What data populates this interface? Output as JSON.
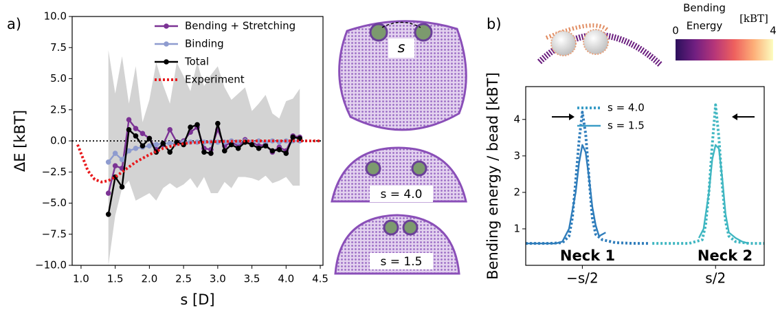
{
  "panel_labels": [
    "a)",
    "b)"
  ],
  "snapshot_labels": [
    "s",
    "s = 4.0",
    "s = 1.5"
  ],
  "colorbar": {
    "title": [
      "Bending",
      "Energy"
    ],
    "unit": "[kBT]",
    "ticks": [
      0,
      4
    ],
    "colors": [
      "#2c105c",
      "#711f81",
      "#b63679",
      "#ee605e",
      "#fdae78",
      "#fcfdbf"
    ]
  },
  "chart_data": [
    {
      "type": "line",
      "xlabel": "s [D]",
      "ylabel": "ΔE [kBT]",
      "xlim": [
        0.87,
        4.54
      ],
      "ylim": [
        -10,
        10
      ],
      "xticks": [
        {
          "value": 1,
          "label": "1.0"
        },
        1.5,
        {
          "value": 2,
          "label": "2.0"
        },
        2.5,
        {
          "value": 3,
          "label": "3.0"
        },
        3.5,
        {
          "value": 4,
          "label": "4.0"
        },
        4.5
      ],
      "yticks": [
        {
          "value": -10,
          "label": "−10.0"
        },
        {
          "value": -7.5,
          "label": "−7.5"
        },
        {
          "value": -5,
          "label": "−5.0"
        },
        {
          "value": -2.5,
          "label": "−2.5"
        },
        {
          "value": 0,
          "label": "0.0"
        },
        2.5,
        {
          "value": 5,
          "label": "5.0"
        },
        7.5,
        {
          "value": 10,
          "label": "10.0"
        }
      ],
      "hline": 0,
      "legend": "upper right",
      "x": [
        1.4,
        1.5,
        1.6,
        1.7,
        1.8,
        1.9,
        2.0,
        2.1,
        2.2,
        2.3,
        2.4,
        2.5,
        2.6,
        2.7,
        2.8,
        2.9,
        3.0,
        3.1,
        3.2,
        3.3,
        3.4,
        3.5,
        3.6,
        3.7,
        3.8,
        3.9,
        4.0,
        4.1,
        4.2
      ],
      "band": {
        "color": "#d3d3d3",
        "upper": [
          7.3,
          3.8,
          6.8,
          3.0,
          6.0,
          1.5,
          3.3,
          6.3,
          4.5,
          3.0,
          6.3,
          5.2,
          4.0,
          6.3,
          4.4,
          5.3,
          6.0,
          4.3,
          3.3,
          3.8,
          4.3,
          2.4,
          3.0,
          3.7,
          2.2,
          1.8,
          3.2,
          3.4,
          4.2
        ],
        "lower": [
          -10,
          -6,
          -3.8,
          -3.2,
          -4.8,
          -4.5,
          -4.2,
          -4.8,
          -3.8,
          -3.4,
          -3.8,
          -3.5,
          -3.0,
          -3.8,
          -2.9,
          -4.2,
          -4.2,
          -3.3,
          -3.8,
          -2.9,
          -2.9,
          -3.0,
          -3.2,
          -2.8,
          -3.4,
          -3.2,
          -2.9,
          -3.6,
          -3.6
        ]
      },
      "series": [
        {
          "name": "Bending + Stretching",
          "color": "#7b3294",
          "marker": true,
          "values": [
            -4.2,
            -2.0,
            -2.2,
            1.7,
            1.0,
            0.6,
            0.2,
            -0.7,
            -0.3,
            0.9,
            -0.1,
            0.0,
            0.7,
            1.1,
            -0.6,
            -0.7,
            0.9,
            -0.4,
            -0.1,
            -0.4,
            0.1,
            -0.1,
            -0.4,
            -0.3,
            -0.9,
            -0.5,
            -0.8,
            0.4,
            0.3
          ]
        },
        {
          "name": "Binding",
          "color": "#8e9bcf",
          "marker": true,
          "values": [
            -1.7,
            -1.0,
            -1.5,
            -0.8,
            -0.6,
            -0.5,
            -0.4,
            -0.3,
            -0.2,
            -0.2,
            -0.2,
            -0.1,
            -0.1,
            -0.1,
            -0.1,
            -0.1,
            -0.1,
            -0.1,
            0.0,
            -0.1,
            0.0,
            -0.1,
            0.0,
            -0.1,
            0.0,
            -0.1,
            0.0,
            0.0,
            0.0
          ]
        },
        {
          "name": "Total",
          "color": "#000000",
          "marker": true,
          "values": [
            -5.9,
            -2.9,
            -3.7,
            0.9,
            0.4,
            -0.4,
            0.2,
            -0.9,
            -0.2,
            -0.9,
            -0.1,
            -0.3,
            1.1,
            1.3,
            -0.9,
            -1.0,
            1.4,
            -0.8,
            -0.3,
            -0.6,
            -0.1,
            -0.3,
            -0.6,
            -0.4,
            -0.8,
            -0.7,
            -1.0,
            0.3,
            0.2
          ]
        },
        {
          "name": "Experiment",
          "color": "#e8191c",
          "dash": "dotted",
          "x": [
            0.95,
            1.0,
            1.1,
            1.2,
            1.3,
            1.4,
            1.5,
            1.6,
            1.7,
            1.8,
            1.9,
            2.0,
            2.2,
            2.4,
            2.6,
            3.0,
            3.5,
            4.0,
            4.5
          ],
          "values": [
            -0.3,
            -1.0,
            -2.4,
            -3.1,
            -3.3,
            -3.2,
            -2.9,
            -2.5,
            -2.1,
            -1.7,
            -1.4,
            -1.1,
            -0.6,
            -0.3,
            -0.15,
            -0.05,
            0,
            0,
            0
          ]
        }
      ]
    },
    {
      "type": "line",
      "ylabel": "Bending energy / bead [kBT]",
      "xlim": [
        -1.85,
        1.73
      ],
      "ylim": [
        0,
        4.9
      ],
      "xticks": [
        {
          "value": -1,
          "label": "−s/2"
        },
        {
          "value": 1,
          "label": "s/2"
        }
      ],
      "yticks": [
        1,
        2,
        3,
        4
      ],
      "legend": "upper center",
      "annotations": [
        {
          "text": "Neck 1",
          "color": "#2f7dbb"
        },
        {
          "text": "Neck 2",
          "color": "#3fb6c1"
        }
      ],
      "series": [
        {
          "name": "s = 4.0",
          "color": "#3a9cc6",
          "colors": [
            "#2f7dbb",
            "#3fb6c1"
          ],
          "dash": "dotted",
          "x": [
            -1.85,
            -1.5,
            -1.3,
            -1.2,
            -1.15,
            -1.1,
            -1.05,
            -1.0,
            -0.95,
            -0.9,
            -0.85,
            -0.8,
            -0.7,
            -0.5,
            -0.2,
            0,
            null,
            0.05,
            0.6,
            0.8,
            0.85,
            0.9,
            0.95,
            1.0,
            1.05,
            1.1,
            1.15,
            1.2,
            1.3,
            1.5,
            1.73
          ],
          "values": [
            0.6,
            0.6,
            0.62,
            0.8,
            1.3,
            2.3,
            3.4,
            4.2,
            3.6,
            2.4,
            1.3,
            0.85,
            0.7,
            0.62,
            0.6,
            0.6,
            null,
            0.6,
            0.6,
            0.7,
            1.1,
            2.0,
            3.3,
            4.4,
            3.5,
            2.2,
            1.2,
            0.8,
            0.65,
            0.6,
            0.6
          ]
        },
        {
          "name": "s = 1.5",
          "color": "#3a9cc6",
          "colors": [
            "#2f7dbb",
            "#3fb6c1"
          ],
          "x": [
            -1.85,
            -1.4,
            -1.3,
            -1.2,
            -1.1,
            -1.05,
            -1.0,
            -0.95,
            -0.9,
            -0.85,
            -0.8,
            -0.75,
            -0.7,
            -0.65,
            null,
            0.75,
            0.82,
            0.9,
            0.95,
            1.0,
            1.05,
            1.1,
            1.15,
            1.2,
            1.3,
            1.4,
            1.5
          ],
          "values": [
            0.6,
            0.6,
            0.65,
            1.0,
            2.0,
            2.8,
            3.3,
            3.1,
            2.4,
            1.6,
            1.1,
            0.8,
            0.85,
            0.9,
            null,
            0.75,
            1.0,
            2.0,
            2.9,
            3.3,
            3.2,
            2.4,
            1.4,
            0.9,
            0.75,
            0.65,
            0.6
          ]
        }
      ]
    }
  ]
}
